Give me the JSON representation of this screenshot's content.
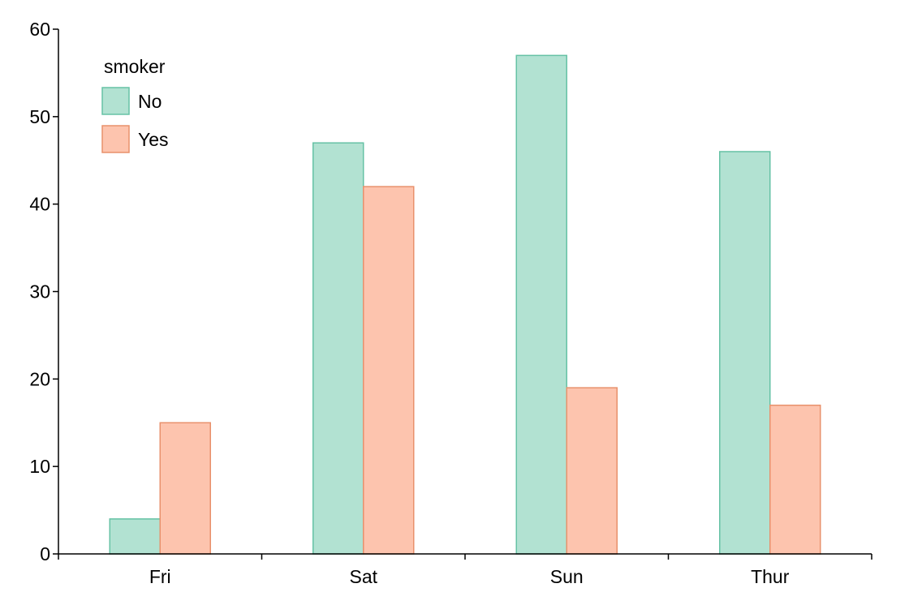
{
  "chart_data": {
    "type": "bar",
    "title": "",
    "xlabel": "",
    "ylabel": "",
    "categories": [
      "Fri",
      "Sat",
      "Sun",
      "Thur"
    ],
    "series": [
      {
        "name": "No",
        "values": [
          4,
          47,
          57,
          46
        ],
        "fill": "#b2e2d2",
        "stroke": "#66c2a5"
      },
      {
        "name": "Yes",
        "values": [
          15,
          42,
          19,
          17
        ],
        "fill": "#fdc4ae",
        "stroke": "#e8916c"
      }
    ],
    "ylim": [
      0,
      60
    ],
    "yticks": [
      0,
      10,
      20,
      30,
      40,
      50,
      60
    ],
    "grid": false,
    "legend": {
      "title": "smoker",
      "placement": "top-left"
    }
  }
}
